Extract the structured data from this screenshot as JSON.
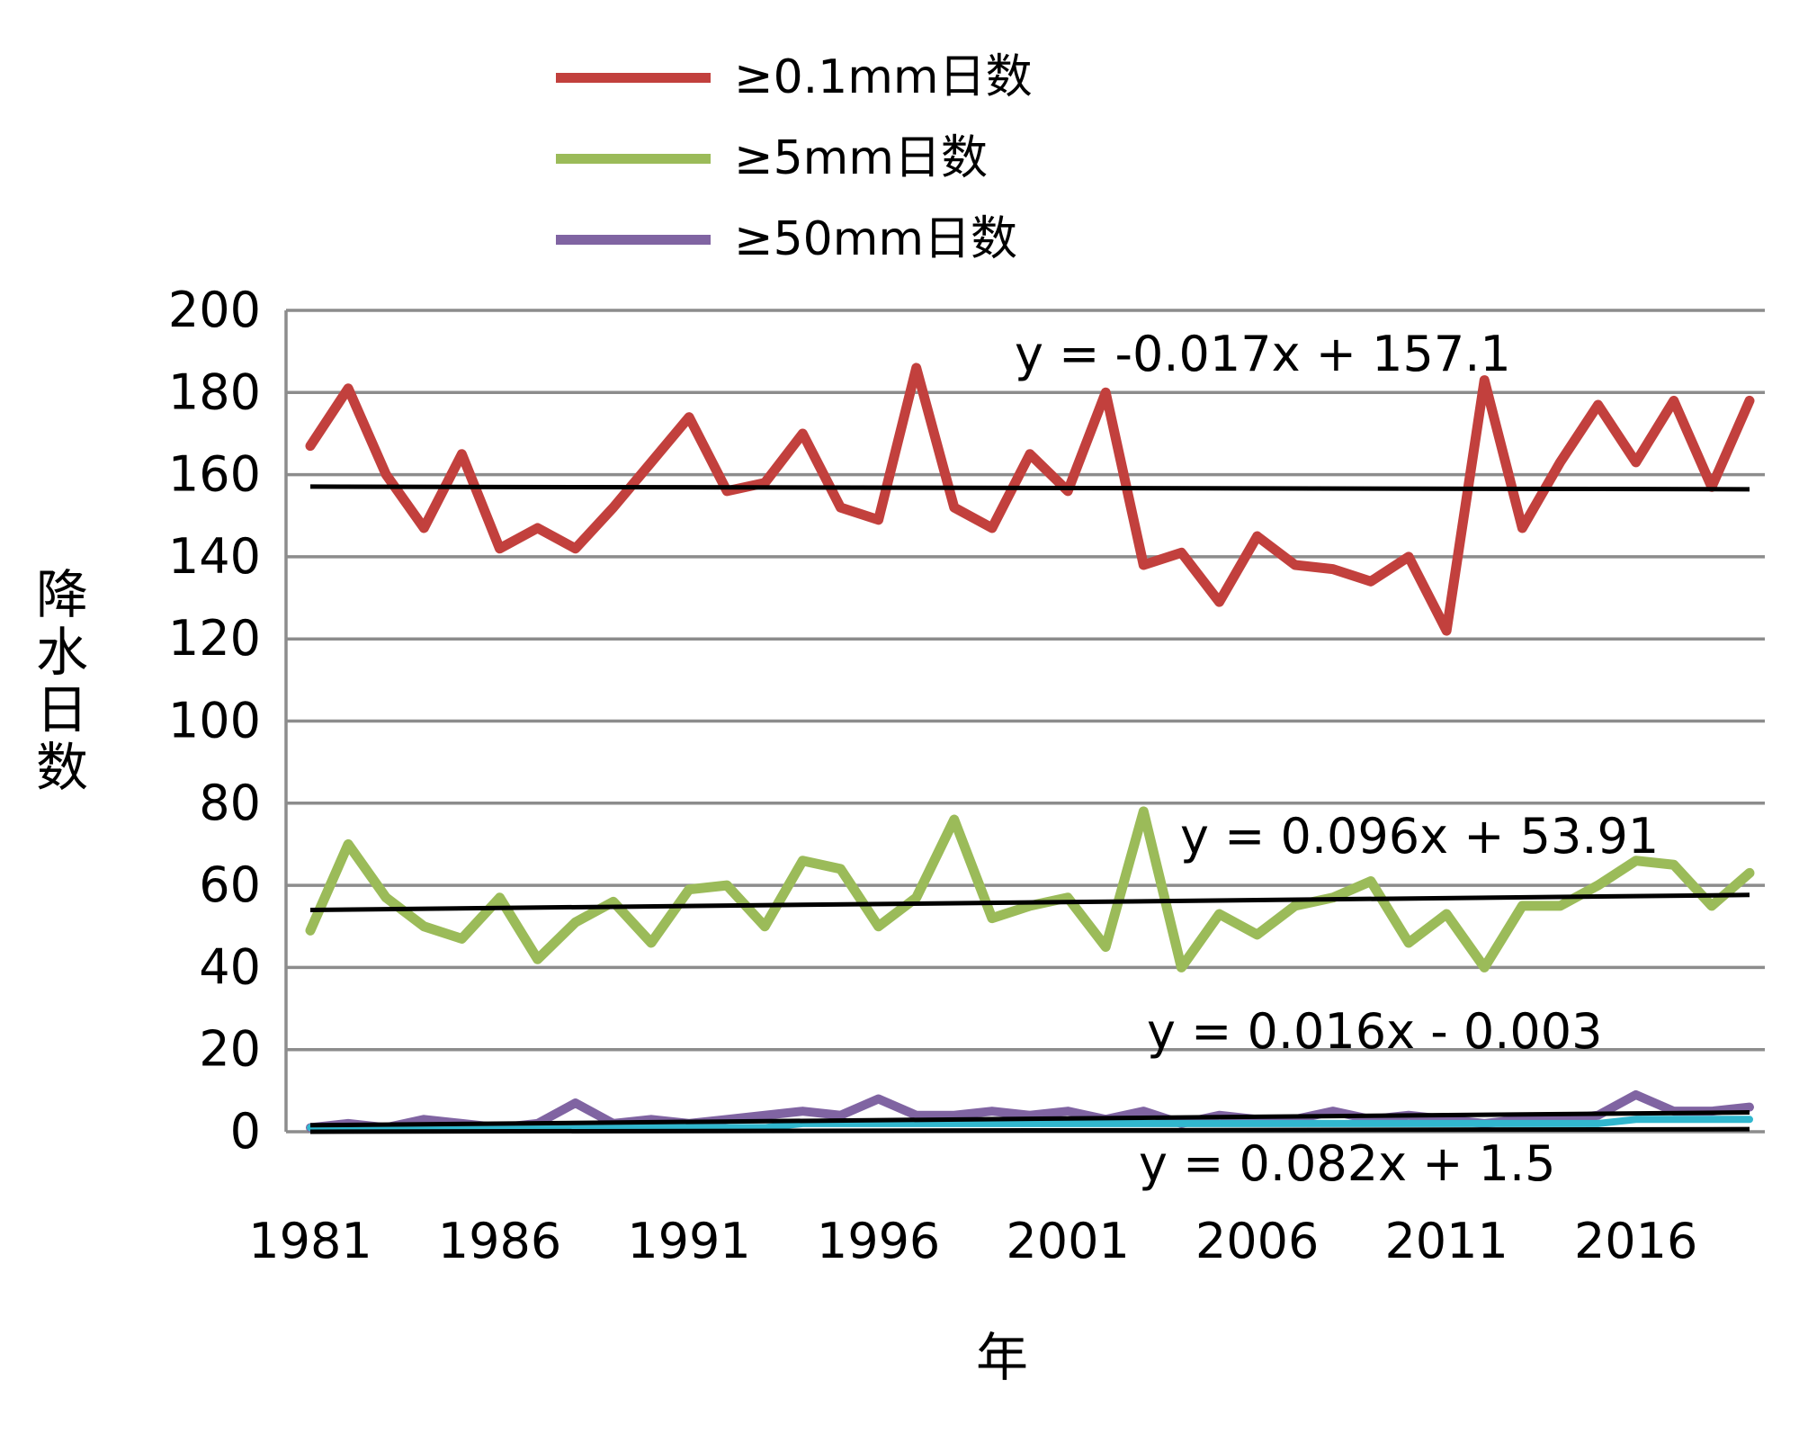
{
  "chart_data": {
    "type": "line",
    "title": "",
    "xlabel": "年",
    "ylabel": "降水日数",
    "ylim": [
      0,
      200
    ],
    "ytick_step": 20,
    "grid": true,
    "legend_position": "top",
    "x": [
      1981,
      1982,
      1983,
      1984,
      1985,
      1986,
      1987,
      1988,
      1989,
      1990,
      1991,
      1992,
      1993,
      1994,
      1995,
      1996,
      1997,
      1998,
      1999,
      2000,
      2001,
      2002,
      2003,
      2004,
      2005,
      2006,
      2007,
      2008,
      2009,
      2010,
      2011,
      2012,
      2013,
      2014,
      2015,
      2016,
      2017,
      2018,
      2019
    ],
    "xticks": [
      1981,
      1986,
      1991,
      1996,
      2001,
      2006,
      2011,
      2016
    ],
    "series": [
      {
        "key": "p01",
        "name": "≥0.1mm日数",
        "color": "#c2403d",
        "legend": true,
        "width": 11,
        "values": [
          167,
          181,
          160,
          147,
          165,
          142,
          147,
          142,
          152,
          163,
          174,
          156,
          158,
          170,
          152,
          149,
          186,
          152,
          147,
          165,
          156,
          180,
          138,
          141,
          129,
          145,
          138,
          137,
          134,
          140,
          122,
          183,
          147,
          163,
          177,
          163,
          178,
          157,
          178
        ]
      },
      {
        "key": "p5",
        "name": "≥5mm日数",
        "color": "#9bbb59",
        "legend": true,
        "width": 11,
        "values": [
          49,
          70,
          57,
          50,
          47,
          57,
          42,
          51,
          56,
          46,
          59,
          60,
          50,
          66,
          64,
          50,
          57,
          76,
          52,
          55,
          57,
          45,
          78,
          40,
          53,
          48,
          55,
          57,
          61,
          46,
          53,
          40,
          55,
          55,
          60,
          66,
          65,
          55,
          63
        ]
      },
      {
        "key": "p50",
        "name": "≥50mm日数",
        "color": "#8064a2",
        "legend": true,
        "width": 10,
        "values": [
          1,
          2,
          1,
          3,
          2,
          1,
          2,
          7,
          2,
          3,
          2,
          3,
          4,
          5,
          4,
          8,
          4,
          4,
          5,
          4,
          5,
          3,
          5,
          2,
          4,
          3,
          3,
          5,
          3,
          4,
          3,
          2,
          3,
          3,
          4,
          9,
          5,
          5,
          6
        ]
      },
      {
        "key": "teal",
        "name": "unlabeled-teal-line",
        "color": "#31b7ce",
        "legend": false,
        "width": 8,
        "values": [
          1,
          1,
          1,
          1,
          1,
          1,
          1,
          1,
          1,
          1,
          1,
          1,
          1,
          2,
          2,
          2,
          2,
          2,
          2,
          2,
          2,
          2,
          2,
          2,
          2,
          2,
          2,
          2,
          2,
          2,
          2,
          2,
          2,
          2,
          2,
          3,
          3,
          3,
          3
        ]
      }
    ],
    "trendlines": [
      {
        "label": "y = -0.017x + 157.1",
        "slope": -0.017,
        "intercept": 157.1
      },
      {
        "label": "y = 0.096x + 53.91",
        "slope": 0.096,
        "intercept": 53.91
      },
      {
        "label": "y = 0.016x - 0.003",
        "slope": 0.016,
        "intercept": -0.003
      },
      {
        "label": "y = 0.082x + 1.5",
        "slope": 0.082,
        "intercept": 1.5
      }
    ]
  }
}
